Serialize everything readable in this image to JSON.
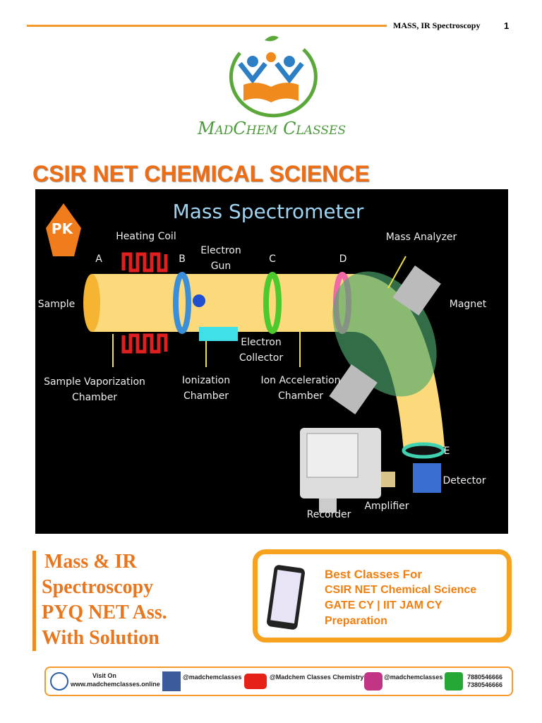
{
  "header": {
    "title": "MASS, IR Spectroscopy",
    "page": "1"
  },
  "logo": {
    "brand": "MadChem Classes"
  },
  "title": "CSIR NET CHEMICAL SCIENCE",
  "diagram": {
    "title": "Mass Spectrometer",
    "badge": "PK",
    "labels": {
      "heating_coil": "Heating Coil",
      "a": "A",
      "b": "B",
      "electron_gun": "Electron Gun",
      "c": "C",
      "d": "D",
      "mass_analyzer": "Mass Analyzer",
      "sample": "Sample",
      "magnet": "Magnet",
      "electron_collector": "Electron Collector",
      "sample_vaporization": "Sample Vaporization Chamber",
      "ionization": "Ionization Chamber",
      "ion_acceleration": "Ion Acceleration Chamber",
      "e": "E",
      "detector": "Detector",
      "amplifier": "Amplifier",
      "recorder": "Recorder"
    }
  },
  "subject": {
    "lines": [
      "Mass & IR",
      "Spectroscopy",
      "PYQ NET Ass.",
      "With Solution"
    ]
  },
  "promo": {
    "lines": [
      "Best Classes For",
      "CSIR NET Chemical Science",
      "GATE CY | IIT JAM CY",
      "Preparation"
    ]
  },
  "footer": {
    "visit": "Visit On",
    "website": "www.madchemclasses.online",
    "facebook": "@madchemclasses",
    "youtube": "@Madchem Classes Chemistry",
    "instagram": "@madchemclasses",
    "phones": [
      "7880546666",
      "7380546666"
    ]
  }
}
